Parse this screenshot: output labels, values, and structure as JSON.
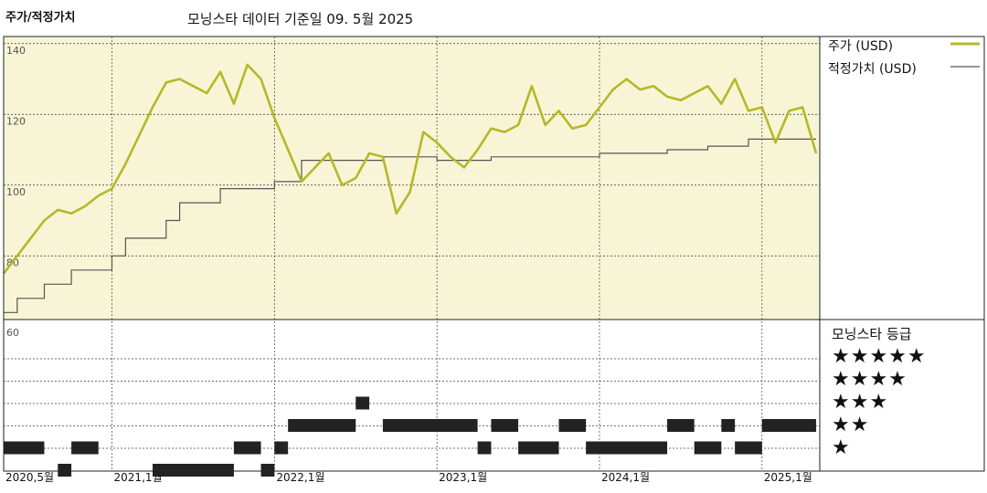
{
  "header": {
    "title": "주가/적정가치",
    "subtitle": "모닝스타 데이터 기준일 09. 5월 2025"
  },
  "legend": {
    "price_label": "주가 (USD)",
    "fair_label": "적정가치 (USD)",
    "rating_title": "모닝스타 등급",
    "stars": [
      "★★★★★",
      "★★★★",
      "★★★",
      "★★",
      "★"
    ]
  },
  "colors": {
    "price": "#b5b82a",
    "fair": "#555555",
    "panel_bg": "#f8f5d6",
    "bar": "#222222"
  },
  "chart_data": [
    {
      "type": "line",
      "ylim": [
        62,
        142
      ],
      "yticks": [
        80,
        100,
        120,
        140
      ],
      "xlim": [
        "2020-05",
        "2025-05-09"
      ],
      "xtick_labels": [
        "2020,5월",
        "2021,1월",
        "2022,1월",
        "2023,1월",
        "2024,1월",
        "2025,1월"
      ],
      "xtick_dates": [
        "2020-05",
        "2021-01",
        "2022-01",
        "2023-01",
        "2024-01",
        "2025-01"
      ],
      "grid": true,
      "series": [
        {
          "name": "주가 (USD)",
          "x": [
            "2020-05",
            "2020-06",
            "2020-07",
            "2020-08",
            "2020-09",
            "2020-10",
            "2020-11",
            "2020-12",
            "2021-01",
            "2021-02",
            "2021-03",
            "2021-04",
            "2021-05",
            "2021-06",
            "2021-07",
            "2021-08",
            "2021-09",
            "2021-10",
            "2021-11",
            "2021-12",
            "2022-01",
            "2022-02",
            "2022-03",
            "2022-04",
            "2022-05",
            "2022-06",
            "2022-07",
            "2022-08",
            "2022-09",
            "2022-10",
            "2022-11",
            "2022-12",
            "2023-01",
            "2023-02",
            "2023-03",
            "2023-04",
            "2023-05",
            "2023-06",
            "2023-07",
            "2023-08",
            "2023-09",
            "2023-10",
            "2023-11",
            "2023-12",
            "2024-01",
            "2024-02",
            "2024-03",
            "2024-04",
            "2024-05",
            "2024-06",
            "2024-07",
            "2024-08",
            "2024-09",
            "2024-10",
            "2024-11",
            "2024-12",
            "2025-01",
            "2025-02",
            "2025-03",
            "2025-04",
            "2025-05"
          ],
          "values": [
            75,
            80,
            85,
            90,
            93,
            92,
            94,
            97,
            99,
            106,
            114,
            122,
            129,
            130,
            128,
            126,
            132,
            123,
            134,
            130,
            119,
            110,
            101,
            105,
            109,
            100,
            102,
            109,
            108,
            92,
            98,
            115,
            112,
            108,
            105,
            110,
            116,
            115,
            117,
            128,
            117,
            121,
            116,
            117,
            122,
            127,
            130,
            127,
            128,
            125,
            124,
            126,
            128,
            123,
            130,
            121,
            122,
            112,
            121,
            122,
            109
          ]
        },
        {
          "name": "적정가치 (USD)",
          "x": [
            "2020-05",
            "2020-06",
            "2020-07",
            "2020-08",
            "2020-09",
            "2020-10",
            "2020-11",
            "2020-12",
            "2021-01",
            "2021-02",
            "2021-03",
            "2021-04",
            "2021-05",
            "2021-06",
            "2021-07",
            "2021-08",
            "2021-09",
            "2021-10",
            "2021-11",
            "2021-12",
            "2022-01",
            "2022-02",
            "2022-03",
            "2022-04",
            "2022-05",
            "2022-06",
            "2022-07",
            "2022-08",
            "2022-09",
            "2022-10",
            "2022-11",
            "2022-12",
            "2023-01",
            "2023-02",
            "2023-03",
            "2023-04",
            "2023-05",
            "2023-06",
            "2023-07",
            "2023-08",
            "2023-09",
            "2023-10",
            "2023-11",
            "2023-12",
            "2024-01",
            "2024-02",
            "2024-03",
            "2024-04",
            "2024-05",
            "2024-06",
            "2024-07",
            "2024-08",
            "2024-09",
            "2024-10",
            "2024-11",
            "2024-12",
            "2025-01",
            "2025-02",
            "2025-03",
            "2025-04",
            "2025-05"
          ],
          "values": [
            64,
            68,
            68,
            72,
            72,
            76,
            76,
            76,
            80,
            85,
            85,
            85,
            90,
            95,
            95,
            95,
            99,
            99,
            99,
            99,
            101,
            101,
            107,
            107,
            107,
            107,
            107,
            107,
            108,
            108,
            108,
            108,
            107,
            107,
            107,
            107,
            108,
            108,
            108,
            108,
            108,
            108,
            108,
            108,
            109,
            109,
            109,
            109,
            109,
            110,
            110,
            110,
            111,
            111,
            111,
            113,
            113,
            113,
            113,
            113,
            113
          ]
        }
      ]
    },
    {
      "type": "bar",
      "title": "모닝스타 등급",
      "ratings": [
        "★★★★★",
        "★★★★",
        "★★★",
        "★★",
        "★"
      ],
      "periods": [
        {
          "start": "2020-05",
          "end": "2020-08",
          "stars": 2
        },
        {
          "start": "2020-09",
          "end": "2020-10",
          "stars": 1
        },
        {
          "start": "2020-10",
          "end": "2020-12",
          "stars": 2
        },
        {
          "start": "2021-04",
          "end": "2021-10",
          "stars": 1
        },
        {
          "start": "2021-10",
          "end": "2021-12",
          "stars": 2
        },
        {
          "start": "2021-12",
          "end": "2022-01",
          "stars": 1
        },
        {
          "start": "2022-01",
          "end": "2022-02",
          "stars": 2
        },
        {
          "start": "2022-02",
          "end": "2022-07",
          "stars": 3
        },
        {
          "start": "2022-07",
          "end": "2022-08",
          "stars": 4
        },
        {
          "start": "2022-09",
          "end": "2023-04",
          "stars": 3
        },
        {
          "start": "2023-04",
          "end": "2023-05",
          "stars": 2
        },
        {
          "start": "2023-05",
          "end": "2023-07",
          "stars": 3
        },
        {
          "start": "2023-07",
          "end": "2023-10",
          "stars": 2
        },
        {
          "start": "2023-10",
          "end": "2023-12",
          "stars": 3
        },
        {
          "start": "2023-12",
          "end": "2024-06",
          "stars": 2
        },
        {
          "start": "2024-06",
          "end": "2024-08",
          "stars": 3
        },
        {
          "start": "2024-08",
          "end": "2024-10",
          "stars": 2
        },
        {
          "start": "2024-10",
          "end": "2024-11",
          "stars": 3
        },
        {
          "start": "2024-11",
          "end": "2025-01",
          "stars": 2
        },
        {
          "start": "2025-01",
          "end": "2025-05",
          "stars": 3
        }
      ]
    }
  ]
}
